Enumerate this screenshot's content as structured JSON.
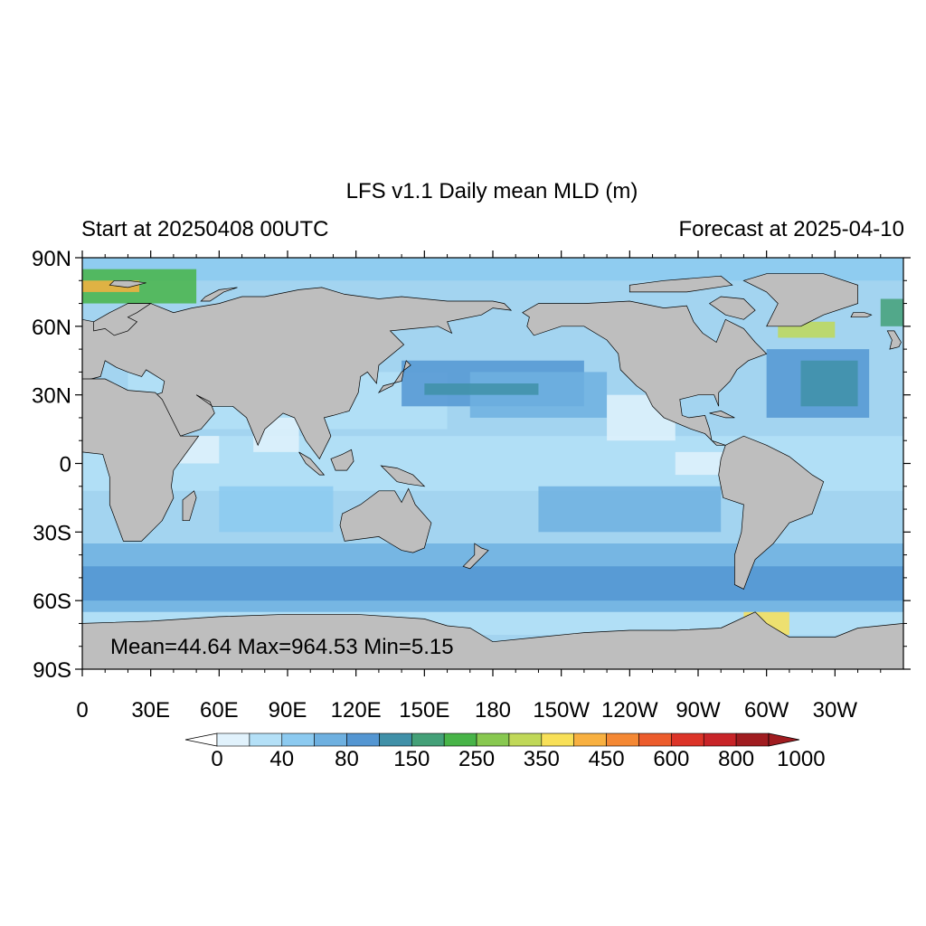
{
  "title": "LFS v1.1 Daily mean MLD (m)",
  "subtitle_left": "Start at 20250408 00UTC",
  "subtitle_right": "Forecast at 2025-04-10",
  "stats_text": "Mean=44.64  Max=964.53  Min=5.15",
  "map": {
    "projection": "cylindrical-equidistant",
    "lon_range": [
      0,
      360
    ],
    "lat_range": [
      -90,
      90
    ],
    "lat_ticks": [
      {
        "lat": 90,
        "label": "90N"
      },
      {
        "lat": 60,
        "label": "60N"
      },
      {
        "lat": 30,
        "label": "30N"
      },
      {
        "lat": 0,
        "label": "0"
      },
      {
        "lat": -30,
        "label": "30S"
      },
      {
        "lat": -60,
        "label": "60S"
      },
      {
        "lat": -90,
        "label": "90S"
      }
    ],
    "lon_ticks": [
      {
        "lon": 0,
        "label": "0"
      },
      {
        "lon": 30,
        "label": "30E"
      },
      {
        "lon": 60,
        "label": "60E"
      },
      {
        "lon": 90,
        "label": "90E"
      },
      {
        "lon": 120,
        "label": "120E"
      },
      {
        "lon": 150,
        "label": "150E"
      },
      {
        "lon": 180,
        "label": "180"
      },
      {
        "lon": 210,
        "label": "150W"
      },
      {
        "lon": 240,
        "label": "120W"
      },
      {
        "lon": 270,
        "label": "90W"
      },
      {
        "lon": 300,
        "label": "60W"
      },
      {
        "lon": 330,
        "label": "30W"
      }
    ],
    "colors": {
      "land": "#bebebe",
      "ocean_base": "#a3d4f0",
      "coast": "#000000"
    }
  },
  "colorbar": {
    "labels": [
      "0",
      "40",
      "80",
      "150",
      "250",
      "350",
      "450",
      "600",
      "800",
      "1000"
    ],
    "colors": [
      "#e1f2fc",
      "#b4e0f7",
      "#8ccaf0",
      "#6eb0e0",
      "#5496d2",
      "#4090a8",
      "#44a078",
      "#48b448",
      "#88c850",
      "#c0d858",
      "#f8e058",
      "#f8b040",
      "#f48834",
      "#ec5c2c",
      "#dc3428",
      "#c82428",
      "#a01c20"
    ],
    "under_color": "#ffffff",
    "over_color": "#a01c20"
  }
}
